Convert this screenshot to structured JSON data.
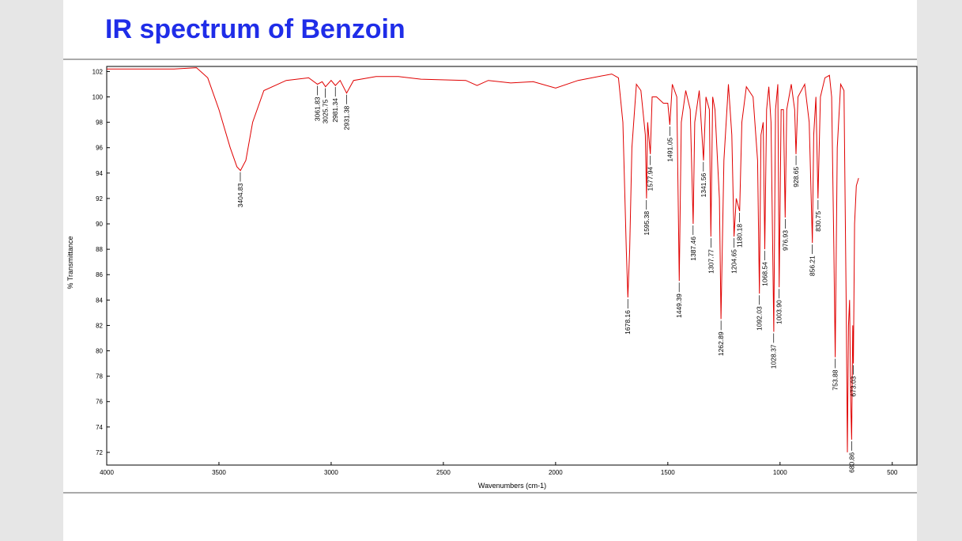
{
  "chart_data": {
    "type": "line",
    "title": "IR spectrum of Benzoin",
    "xlabel": "Wavenumbers (cm-1)",
    "ylabel": "% Transmittance",
    "xlim": [
      4000,
      390
    ],
    "ylim": [
      71,
      102.4
    ],
    "xticks": [
      4000,
      3500,
      3000,
      2500,
      2000,
      1500,
      1000,
      500
    ],
    "yticks": [
      72,
      74,
      76,
      78,
      80,
      82,
      84,
      86,
      88,
      90,
      92,
      94,
      96,
      98,
      100,
      102
    ],
    "series": [
      {
        "color": "#e00000",
        "x": [
          4000,
          3700,
          3600,
          3550,
          3500,
          3450,
          3420,
          3404,
          3380,
          3350,
          3300,
          3200,
          3100,
          3061,
          3040,
          3025,
          3000,
          2981,
          2960,
          2931,
          2900,
          2800,
          2700,
          2600,
          2400,
          2350,
          2300,
          2200,
          2100,
          2000,
          1900,
          1750,
          1720,
          1700,
          1685,
          1678,
          1670,
          1660,
          1640,
          1620,
          1600,
          1595,
          1590,
          1578,
          1570,
          1550,
          1520,
          1500,
          1491,
          1480,
          1460,
          1449,
          1440,
          1420,
          1400,
          1387,
          1380,
          1360,
          1341,
          1330,
          1315,
          1308,
          1300,
          1290,
          1270,
          1263,
          1250,
          1230,
          1215,
          1205,
          1195,
          1180,
          1170,
          1150,
          1120,
          1100,
          1092,
          1085,
          1075,
          1068,
          1060,
          1050,
          1040,
          1028,
          1020,
          1010,
          1004,
          995,
          985,
          977,
          970,
          950,
          935,
          929,
          920,
          890,
          870,
          856,
          850,
          840,
          831,
          820,
          800,
          780,
          770,
          760,
          754,
          745,
          730,
          715,
          705,
          700,
          695,
          690,
          685,
          681,
          676,
          673,
          668,
          660,
          650
        ],
        "values": [
          102.2,
          102.2,
          102.3,
          101.5,
          99,
          96,
          94.5,
          94.2,
          95,
          98,
          100.5,
          101.3,
          101.5,
          101,
          101.2,
          100.8,
          101.3,
          100.9,
          101.3,
          100.3,
          101.3,
          101.6,
          101.6,
          101.4,
          101.3,
          100.9,
          101.3,
          101.1,
          101.2,
          100.7,
          101.3,
          101.8,
          101.5,
          98,
          88,
          84.2,
          88,
          96,
          101,
          100.5,
          97,
          92,
          98,
          95.5,
          100,
          100,
          99.5,
          99.5,
          97.8,
          101,
          100,
          85.5,
          98,
          100.5,
          99,
          90,
          98,
          100.5,
          95,
          100,
          99,
          89,
          100,
          99,
          92,
          82.5,
          95,
          101,
          97,
          89,
          92,
          91,
          98,
          100.8,
          100,
          95,
          84.5,
          97,
          98,
          88,
          99,
          100.8,
          98,
          81.5,
          99,
          101,
          85,
          99,
          99,
          90.5,
          99,
          101,
          99,
          95.5,
          100,
          101,
          98,
          88.5,
          97,
          100,
          92,
          100,
          101.5,
          101.7,
          100,
          88,
          79.5,
          96,
          101,
          100.5,
          83,
          72,
          82,
          84,
          76,
          73,
          82,
          79,
          90,
          93,
          93.6
        ]
      }
    ],
    "peaks": [
      {
        "value": 3404.83,
        "label": "3404.83",
        "y": 94.2
      },
      {
        "value": 3061.83,
        "label": "3061.83",
        "y": 101
      },
      {
        "value": 3025.75,
        "label": "3025.75",
        "y": 100.8
      },
      {
        "value": 2981.34,
        "label": "2981.34",
        "y": 100.9
      },
      {
        "value": 2931.38,
        "label": "2931.38",
        "y": 100.3
      },
      {
        "value": 1678.16,
        "label": "1678.16",
        "y": 84.2
      },
      {
        "value": 1595.38,
        "label": "1595.38",
        "y": 92
      },
      {
        "value": 1577.94,
        "label": "1577.94",
        "y": 95.5
      },
      {
        "value": 1491.05,
        "label": "1491.05",
        "y": 97.8
      },
      {
        "value": 1449.39,
        "label": "1449.39",
        "y": 85.5
      },
      {
        "value": 1387.46,
        "label": "1387.46",
        "y": 90
      },
      {
        "value": 1341.56,
        "label": "1341.56",
        "y": 95
      },
      {
        "value": 1307.77,
        "label": "1307.77",
        "y": 89
      },
      {
        "value": 1262.89,
        "label": "1262.89",
        "y": 82.5
      },
      {
        "value": 1204.65,
        "label": "1204.65",
        "y": 89
      },
      {
        "value": 1180.18,
        "label": "1180.18",
        "y": 91
      },
      {
        "value": 1092.03,
        "label": "1092.03",
        "y": 84.5
      },
      {
        "value": 1068.54,
        "label": "1068.54",
        "y": 88
      },
      {
        "value": 1028.37,
        "label": "1028.37",
        "y": 81.5
      },
      {
        "value": 1003.9,
        "label": "1003.90",
        "y": 85
      },
      {
        "value": 976.93,
        "label": "976.93",
        "y": 90.5
      },
      {
        "value": 928.65,
        "label": "928.65",
        "y": 95.5
      },
      {
        "value": 856.21,
        "label": "856.21",
        "y": 88.5
      },
      {
        "value": 830.75,
        "label": "830.75",
        "y": 92
      },
      {
        "value": 753.88,
        "label": "753.88",
        "y": 79.5
      },
      {
        "value": 680.86,
        "label": "680.86",
        "y": 73
      },
      {
        "value": 673.03,
        "label": "673.03",
        "y": 79
      }
    ]
  }
}
